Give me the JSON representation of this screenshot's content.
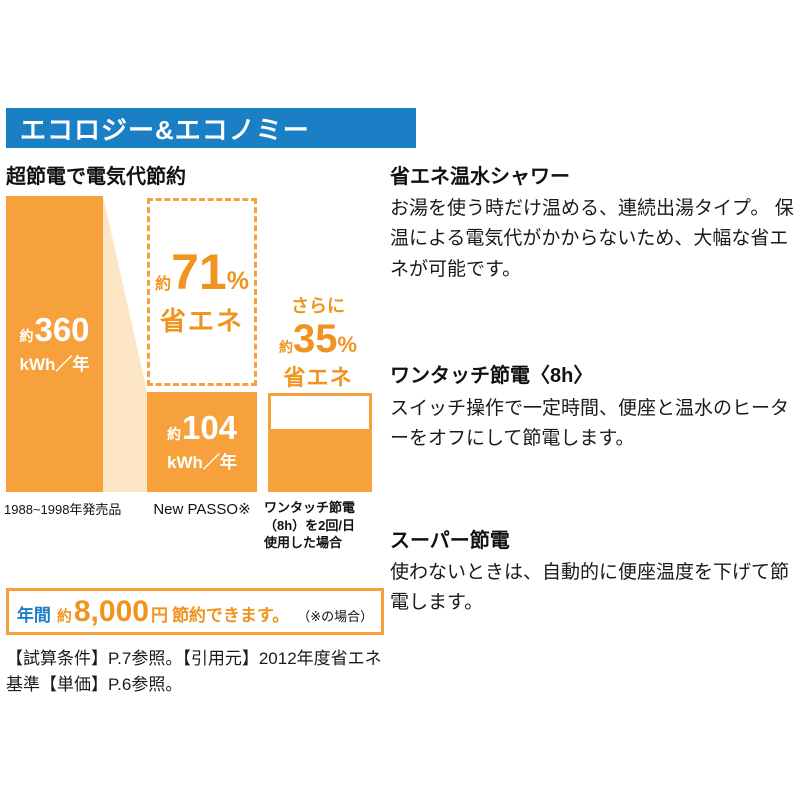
{
  "header": {
    "title": "エコロジー&エコノミー"
  },
  "left": {
    "heading": "超節電で電気代節約",
    "chart": {
      "bar1": {
        "approx": "約",
        "value": "360",
        "unit": "kWh／年",
        "label": "1988~1998年発売品"
      },
      "saving1": {
        "approx": "約",
        "value": "71",
        "percent": "%",
        "label": "省エネ"
      },
      "bar2": {
        "approx": "約",
        "value": "104",
        "unit": "kWh／年",
        "label": "New PASSO※"
      },
      "saving2": {
        "more": "さらに",
        "approx": "約",
        "value": "35",
        "percent": "%",
        "label": "省エネ"
      },
      "bar3": {
        "label": "ワンタッチ節電\n（8h）を2回/日\n使用した場合"
      }
    },
    "summary": {
      "period": "年間",
      "approx": "約",
      "amount": "8,000",
      "unit": "円",
      "text": "節約できます。",
      "note": "（※の場合）"
    },
    "footnote": "【試算条件】P.7参照。【引用元】2012年度省エネ基準【単価】P.6参照。"
  },
  "right": {
    "sections": [
      {
        "heading": "省エネ温水シャワー",
        "body": "お湯を使う時だけ温める、連続出湯タイプ。 保温による電気代がかからないため、大幅な省エネが可能です。"
      },
      {
        "heading": "ワンタッチ節電〈8h〉",
        "body": "スイッチ操作で一定時間、便座と温水のヒーターをオフにして節電します。"
      },
      {
        "heading": "スーパー節電",
        "body": "使わないときは、自動的に便座温度を下げて節電します。"
      }
    ]
  },
  "chart_data": {
    "type": "bar",
    "title": "超節電で電気代節約",
    "categories": [
      "1988~1998年発売品",
      "New PASSO※",
      "ワンタッチ節電（8h）を2回/日使用した場合"
    ],
    "values": [
      360,
      104,
      null
    ],
    "unit": "kWh／年",
    "ylabel": "kWh／年",
    "annotations": [
      "約71%省エネ (New PASSO vs 1988~1998年発売品)",
      "さらに約35%省エネ (ワンタッチ節電使用時)"
    ],
    "summary": "年間 約8,000円 節約できます。（※の場合）"
  },
  "colors": {
    "blue": "#1B7FC6",
    "orange": "#F6A13B",
    "orange-text": "#F0941F",
    "light-orange": "#FCE6C6"
  }
}
